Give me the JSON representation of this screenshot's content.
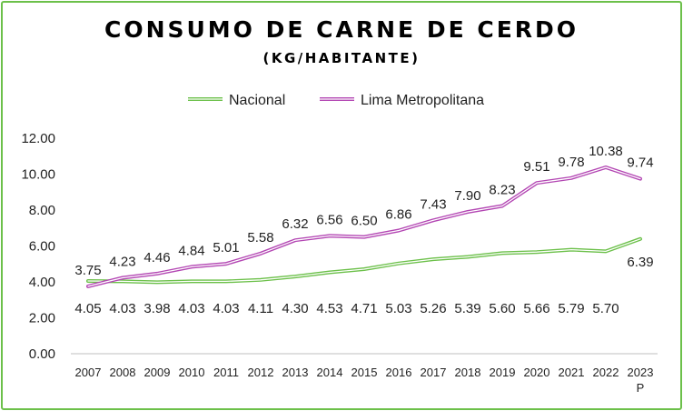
{
  "chart_data": {
    "type": "line",
    "title": "CONSUMO DE CARNE DE CERDO",
    "subtitle": "(KG/HABITANTE)",
    "categories": [
      "2007",
      "2008",
      "2009",
      "2010",
      "2011",
      "2012",
      "2013",
      "2014",
      "2015",
      "2016",
      "2017",
      "2018",
      "2019",
      "2020",
      "2021",
      "2022",
      "2023 P"
    ],
    "series": [
      {
        "name": "Nacional",
        "color": "#6cc04a",
        "values": [
          4.05,
          4.03,
          3.98,
          4.03,
          4.03,
          4.11,
          4.3,
          4.53,
          4.71,
          5.03,
          5.26,
          5.39,
          5.6,
          5.66,
          5.79,
          5.7,
          6.39
        ]
      },
      {
        "name": "Lima Metropolitana",
        "color": "#b346b3",
        "values": [
          3.75,
          4.23,
          4.46,
          4.84,
          5.01,
          5.58,
          6.32,
          6.56,
          6.5,
          6.86,
          7.43,
          7.9,
          8.23,
          9.51,
          9.78,
          10.38,
          9.74
        ]
      }
    ],
    "ylim": [
      0,
      12
    ],
    "yticks": [
      "0.00",
      "2.00",
      "4.00",
      "6.00",
      "8.00",
      "10.00",
      "12.00"
    ],
    "grid": false,
    "legend": "top-center"
  }
}
